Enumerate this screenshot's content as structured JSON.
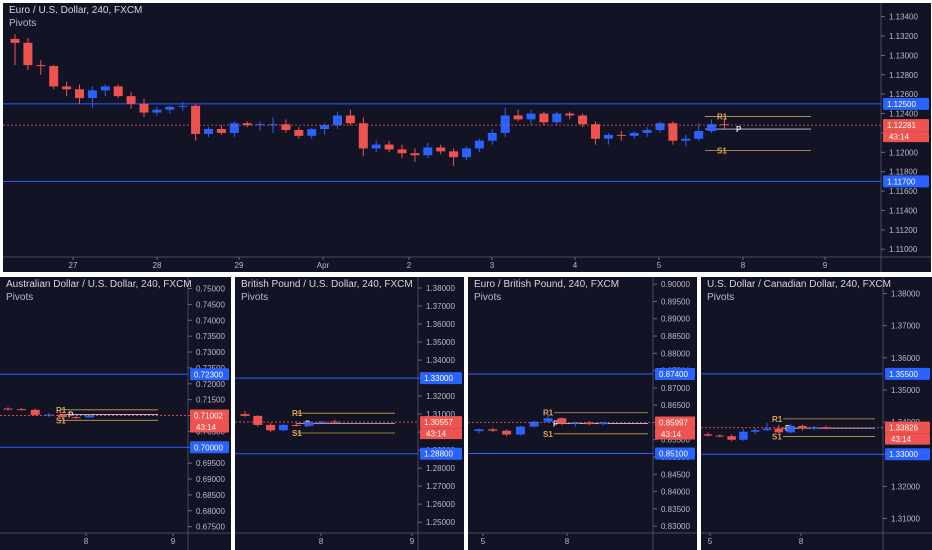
{
  "colors": {
    "background": "#131326",
    "up": "#2962ff",
    "down": "#ef5350",
    "level_line": "#2962ff",
    "pivot_label": "#e0a84f",
    "pivot_line": "#c9a44a",
    "current_price_line": "#ef5350",
    "axis_text": "#b9b9c6",
    "countdown_bg": "#2962ff"
  },
  "chart_data": [
    {
      "type": "candlestick",
      "title": "Euro / U.S. Dollar, 240, FXCM",
      "indicator": "Pivots",
      "y_ticks": [
        "1.13400",
        "1.13200",
        "1.13000",
        "1.12800",
        "1.12600",
        "1.12400",
        "1.12200",
        "1.12000",
        "1.11800",
        "1.11600",
        "1.11400",
        "1.11200",
        "1.11000"
      ],
      "x_ticks": [
        "27",
        "28",
        "29",
        "Apr",
        "2",
        "3",
        "4",
        "5",
        "8",
        "9"
      ],
      "ylim": [
        1.1092,
        1.1352
      ],
      "horizontal_levels": [
        "1.12500",
        "1.11700"
      ],
      "current_price": "1.12281",
      "countdown": "43:14",
      "pivot_labels": {
        "r1": "R1",
        "p": "P",
        "s1": "S1"
      },
      "pivots": {
        "r1": 1.1237,
        "p": 1.1224,
        "s1": 1.1202
      },
      "candles": [
        [
          1.1317,
          1.1322,
          1.129,
          1.1313
        ],
        [
          1.1313,
          1.1318,
          1.1285,
          1.129
        ],
        [
          1.129,
          1.1295,
          1.128,
          1.1289
        ],
        [
          1.1289,
          1.129,
          1.1265,
          1.1268
        ],
        [
          1.1268,
          1.1273,
          1.1258,
          1.1265
        ],
        [
          1.1265,
          1.127,
          1.125,
          1.1256
        ],
        [
          1.1256,
          1.1268,
          1.1246,
          1.1264
        ],
        [
          1.1264,
          1.127,
          1.1258,
          1.1268
        ],
        [
          1.1268,
          1.127,
          1.1256,
          1.1258
        ],
        [
          1.1258,
          1.1262,
          1.1245,
          1.125
        ],
        [
          1.125,
          1.1255,
          1.1236,
          1.1241
        ],
        [
          1.1241,
          1.1247,
          1.1238,
          1.1244
        ],
        [
          1.1244,
          1.1248,
          1.124,
          1.1247
        ],
        [
          1.1247,
          1.1252,
          1.1243,
          1.1248
        ],
        [
          1.1248,
          1.125,
          1.1212,
          1.1219
        ],
        [
          1.1219,
          1.1226,
          1.1216,
          1.1224
        ],
        [
          1.1224,
          1.1228,
          1.1218,
          1.122
        ],
        [
          1.122,
          1.1232,
          1.1216,
          1.123
        ],
        [
          1.123,
          1.1232,
          1.1226,
          1.1228
        ],
        [
          1.1228,
          1.1232,
          1.1222,
          1.1229
        ],
        [
          1.1229,
          1.1236,
          1.122,
          1.1229
        ],
        [
          1.1229,
          1.1234,
          1.122,
          1.1223
        ],
        [
          1.1223,
          1.1226,
          1.1214,
          1.1217
        ],
        [
          1.1217,
          1.1225,
          1.1214,
          1.1224
        ],
        [
          1.1224,
          1.123,
          1.1218,
          1.1228
        ],
        [
          1.1228,
          1.1242,
          1.1224,
          1.1238
        ],
        [
          1.1238,
          1.1244,
          1.1228,
          1.123
        ],
        [
          1.123,
          1.1236,
          1.1196,
          1.1204
        ],
        [
          1.1204,
          1.1212,
          1.12,
          1.1208
        ],
        [
          1.1208,
          1.1212,
          1.12,
          1.1203
        ],
        [
          1.1203,
          1.1208,
          1.1194,
          1.1199
        ],
        [
          1.1199,
          1.1204,
          1.119,
          1.1197
        ],
        [
          1.1197,
          1.121,
          1.1194,
          1.1205
        ],
        [
          1.1205,
          1.1208,
          1.1198,
          1.1201
        ],
        [
          1.1201,
          1.1204,
          1.1186,
          1.1195
        ],
        [
          1.1195,
          1.1206,
          1.1192,
          1.1204
        ],
        [
          1.1204,
          1.1214,
          1.12,
          1.1212
        ],
        [
          1.1212,
          1.1224,
          1.1208,
          1.122
        ],
        [
          1.122,
          1.1246,
          1.1216,
          1.1238
        ],
        [
          1.1238,
          1.1244,
          1.1232,
          1.1234
        ],
        [
          1.1234,
          1.1244,
          1.1228,
          1.124
        ],
        [
          1.124,
          1.1242,
          1.1228,
          1.1231
        ],
        [
          1.1231,
          1.1242,
          1.1228,
          1.124
        ],
        [
          1.124,
          1.1242,
          1.1234,
          1.1238
        ],
        [
          1.1238,
          1.124,
          1.1226,
          1.1229
        ],
        [
          1.1229,
          1.1232,
          1.1208,
          1.1214
        ],
        [
          1.1214,
          1.122,
          1.1208,
          1.1218
        ],
        [
          1.1218,
          1.1222,
          1.1212,
          1.1217
        ],
        [
          1.1217,
          1.1222,
          1.1214,
          1.122
        ],
        [
          1.122,
          1.1226,
          1.1216,
          1.1223
        ],
        [
          1.1223,
          1.1232,
          1.122,
          1.123
        ],
        [
          1.123,
          1.1232,
          1.1208,
          1.1212
        ],
        [
          1.1212,
          1.1218,
          1.1206,
          1.1214
        ],
        [
          1.1214,
          1.123,
          1.1212,
          1.1222
        ],
        [
          1.1222,
          1.1234,
          1.122,
          1.1229
        ],
        [
          1.1229,
          1.1234,
          1.1223,
          1.1228
        ]
      ]
    },
    {
      "type": "candlestick",
      "title": "Australian Dollar / U.S. Dollar, 240, FXCM",
      "indicator": "Pivots",
      "y_ticks": [
        "0.75000",
        "0.74500",
        "0.74000",
        "0.73500",
        "0.73000",
        "0.72500",
        "0.72000",
        "0.71500",
        "0.71000",
        "0.70500",
        "0.70000",
        "0.69500",
        "0.69000",
        "0.68500",
        "0.68000",
        "0.67500"
      ],
      "x_ticks": [
        "8",
        "9"
      ],
      "ylim": [
        0.673,
        0.753
      ],
      "horizontal_levels": [
        "0.72300",
        "0.70000"
      ],
      "current_price": "0.71002",
      "countdown": "43:14",
      "pivot_labels": {
        "r1": "R1",
        "p": "P",
        "s1": "S1"
      },
      "pivots": {
        "r1": 0.7118,
        "p": 0.7103,
        "s1": 0.7085
      },
      "candles": [
        [
          0.7122,
          0.7126,
          0.7116,
          0.712
        ],
        [
          0.712,
          0.7124,
          0.7116,
          0.7118
        ],
        [
          0.7118,
          0.7121,
          0.71,
          0.7102
        ],
        [
          0.7102,
          0.7108,
          0.7096,
          0.7103
        ],
        [
          0.7103,
          0.7106,
          0.7092,
          0.7095
        ],
        [
          0.7095,
          0.71,
          0.709,
          0.7094
        ],
        [
          0.7094,
          0.7102,
          0.7092,
          0.71
        ]
      ]
    },
    {
      "type": "candlestick",
      "title": "British Pound / U.S. Dollar, 240, FXCM",
      "indicator": "Pivots",
      "y_ticks": [
        "1.38000",
        "1.37000",
        "1.36000",
        "1.35000",
        "1.34000",
        "1.33000",
        "1.32000",
        "1.31000",
        "1.30000",
        "1.29000",
        "1.28000",
        "1.27000",
        "1.26000",
        "1.25000"
      ],
      "x_ticks": [
        "8",
        "9"
      ],
      "ylim": [
        1.244,
        1.385
      ],
      "horizontal_levels": [
        "1.33000",
        "1.28800"
      ],
      "current_price": "1.30557",
      "countdown": "43:14",
      "pivot_labels": {
        "r1": "R1",
        "p": "P",
        "s1": "S1"
      },
      "pivots": {
        "r1": 1.3105,
        "p": 1.3047,
        "s1": 1.2995
      },
      "candles": [
        [
          1.31,
          1.3118,
          1.3085,
          1.309
        ],
        [
          1.309,
          1.3095,
          1.303,
          1.304
        ],
        [
          1.304,
          1.305,
          1.3,
          1.301
        ],
        [
          1.301,
          1.3045,
          1.3005,
          1.304
        ],
        [
          1.304,
          1.3055,
          1.303,
          1.3035
        ],
        [
          1.3035,
          1.3058,
          1.303,
          1.3055
        ],
        [
          1.3055,
          1.3062,
          1.305,
          1.3058
        ],
        [
          1.3058,
          1.3068,
          1.305,
          1.3056
        ]
      ]
    },
    {
      "type": "candlestick",
      "title": "Euro / British Pound, 240, FXCM",
      "indicator": "Pivots",
      "y_ticks": [
        "0.90000",
        "0.89500",
        "0.89000",
        "0.88500",
        "0.88000",
        "0.87500",
        "0.87000",
        "0.86500",
        "0.86000",
        "0.85500",
        "0.85000",
        "0.84500",
        "0.84000",
        "0.83500",
        "0.83000"
      ],
      "x_ticks": [
        "5",
        "8"
      ],
      "ylim": [
        0.828,
        0.9015
      ],
      "horizontal_levels": [
        "0.87400",
        "0.85100"
      ],
      "current_price": "0.85997",
      "countdown": "43:14",
      "pivot_labels": {
        "r1": "R1",
        "p": "P",
        "s1": "S1"
      },
      "pivots": {
        "r1": 0.8628,
        "p": 0.8597,
        "s1": 0.8567
      },
      "candles": [
        [
          0.8575,
          0.8582,
          0.8568,
          0.858
        ],
        [
          0.858,
          0.8585,
          0.8572,
          0.8576
        ],
        [
          0.8576,
          0.858,
          0.856,
          0.8565
        ],
        [
          0.8565,
          0.859,
          0.8562,
          0.8588
        ],
        [
          0.8588,
          0.8605,
          0.8585,
          0.8602
        ],
        [
          0.8602,
          0.8625,
          0.8598,
          0.8612
        ],
        [
          0.8612,
          0.8615,
          0.8592,
          0.8597
        ],
        [
          0.8597,
          0.8602,
          0.8588,
          0.86
        ],
        [
          0.86,
          0.8604,
          0.8592,
          0.8595
        ],
        [
          0.8595,
          0.8602,
          0.8592,
          0.86
        ]
      ]
    },
    {
      "type": "candlestick",
      "title": "U.S. Dollar / Canadian Dollar, 240, FXCM",
      "indicator": "Pivots",
      "y_ticks": [
        "1.38000",
        "1.37000",
        "1.36000",
        "1.35000",
        "1.34000",
        "1.33000",
        "1.32000",
        "1.31000"
      ],
      "x_ticks": [
        "5",
        "8"
      ],
      "ylim": [
        1.3055,
        1.3845
      ],
      "horizontal_levels": [
        "1.35500",
        "1.33000"
      ],
      "current_price": "1.33826",
      "countdown": "43:14",
      "pivot_labels": {
        "r1": "R1",
        "p": "P",
        "s1": "S1"
      },
      "pivots": {
        "r1": 1.341,
        "p": 1.3381,
        "s1": 1.3355
      },
      "candles": [
        [
          1.3362,
          1.3368,
          1.3355,
          1.3358
        ],
        [
          1.3358,
          1.3362,
          1.3352,
          1.3356
        ],
        [
          1.3356,
          1.3362,
          1.334,
          1.3345
        ],
        [
          1.3345,
          1.338,
          1.3342,
          1.337
        ],
        [
          1.337,
          1.3382,
          1.3362,
          1.3375
        ],
        [
          1.3375,
          1.3398,
          1.3372,
          1.338
        ],
        [
          1.338,
          1.339,
          1.3365,
          1.3368
        ],
        [
          1.3368,
          1.3395,
          1.3365,
          1.3388
        ],
        [
          1.3388,
          1.3392,
          1.3374,
          1.338
        ],
        [
          1.338,
          1.3388,
          1.3375,
          1.3384
        ],
        [
          1.3384,
          1.3388,
          1.3378,
          1.3382
        ]
      ]
    }
  ]
}
